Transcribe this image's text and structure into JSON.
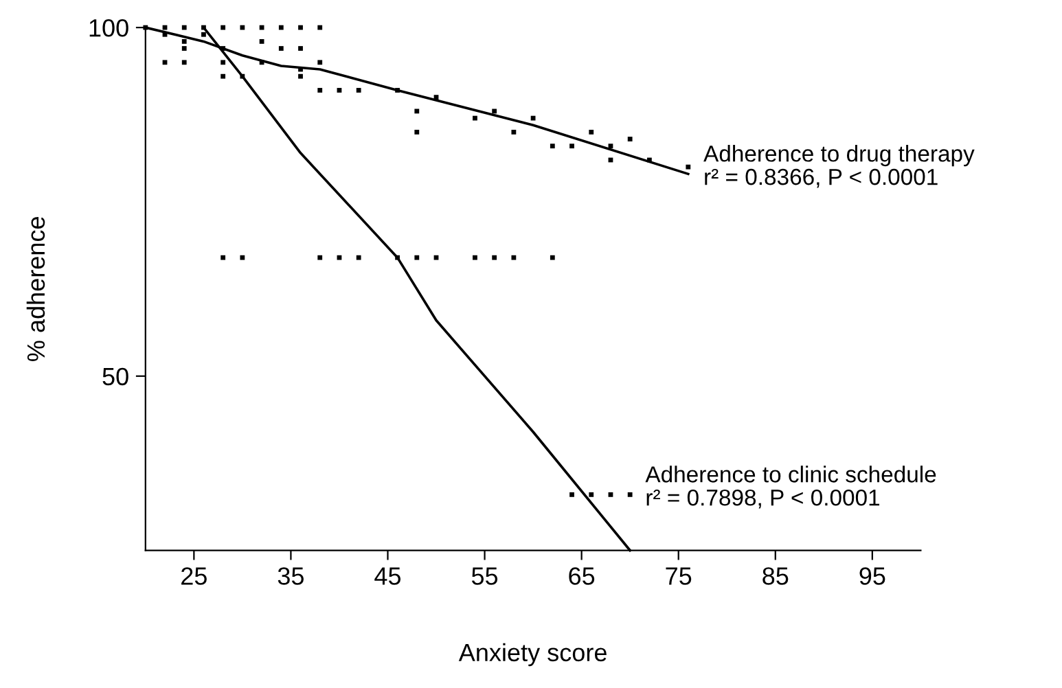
{
  "chart_data": {
    "type": "scatter",
    "xlabel": "Anxiety score",
    "ylabel": "% adherence",
    "xlim": [
      20,
      100
    ],
    "xticks": [
      25,
      35,
      45,
      55,
      65,
      75,
      85,
      95
    ],
    "ylim": [
      25,
      100
    ],
    "yticks": [
      50,
      100
    ],
    "grid": false,
    "legend": false,
    "marker": "square",
    "series": [
      {
        "color": "#000000",
        "x": [
          20,
          22,
          24,
          26,
          28,
          30,
          32,
          34,
          36,
          38,
          22,
          24,
          24,
          26,
          28,
          32,
          34,
          36,
          22,
          24,
          28,
          28,
          30,
          32,
          36,
          36,
          38,
          38,
          40,
          42,
          46,
          48,
          48,
          50,
          54,
          56,
          58,
          60,
          62,
          64,
          66,
          68,
          68,
          70,
          72,
          76
        ],
        "values": [
          100,
          100,
          100,
          100,
          100,
          100,
          100,
          100,
          100,
          100,
          99,
          98,
          97,
          99,
          97,
          98,
          97,
          97,
          95,
          95,
          95,
          93,
          93,
          95,
          94,
          93,
          95,
          91,
          91,
          91,
          91,
          88,
          85,
          90,
          87,
          88,
          85,
          87,
          83,
          83,
          85,
          83,
          81,
          84,
          81,
          80
        ]
      },
      {
        "type": "line",
        "name": "Adherence to drug therapy",
        "color": "#000000",
        "marker": "none",
        "x": [
          20,
          26,
          30,
          34,
          38,
          46,
          60,
          76
        ],
        "values": [
          100,
          98,
          96,
          94.5,
          94,
          91,
          86,
          79
        ]
      },
      {
        "name": "Adherence to clinic schedule",
        "color": "#000000",
        "x": [
          28,
          30,
          38,
          40,
          42,
          46,
          48,
          50,
          54,
          56,
          58,
          62,
          64,
          66,
          68,
          70
        ],
        "values": [
          67,
          67,
          67,
          67,
          67,
          67,
          67,
          67,
          67,
          67,
          67,
          67,
          33,
          33,
          33,
          33
        ]
      },
      {
        "type": "line",
        "color": "#000000",
        "marker": "none",
        "x": [
          26,
          30,
          36,
          40,
          46,
          50,
          60,
          70
        ],
        "values": [
          100,
          93,
          82,
          76,
          67,
          58,
          42,
          25
        ]
      }
    ],
    "annotations": [
      {
        "text": "r² = 0.8366, P < 0.0001",
        "x": 76,
        "y": 79
      },
      {
        "text": "r² = 0.7898, P < 0.0001",
        "x": 70,
        "y": 33
      }
    ]
  }
}
